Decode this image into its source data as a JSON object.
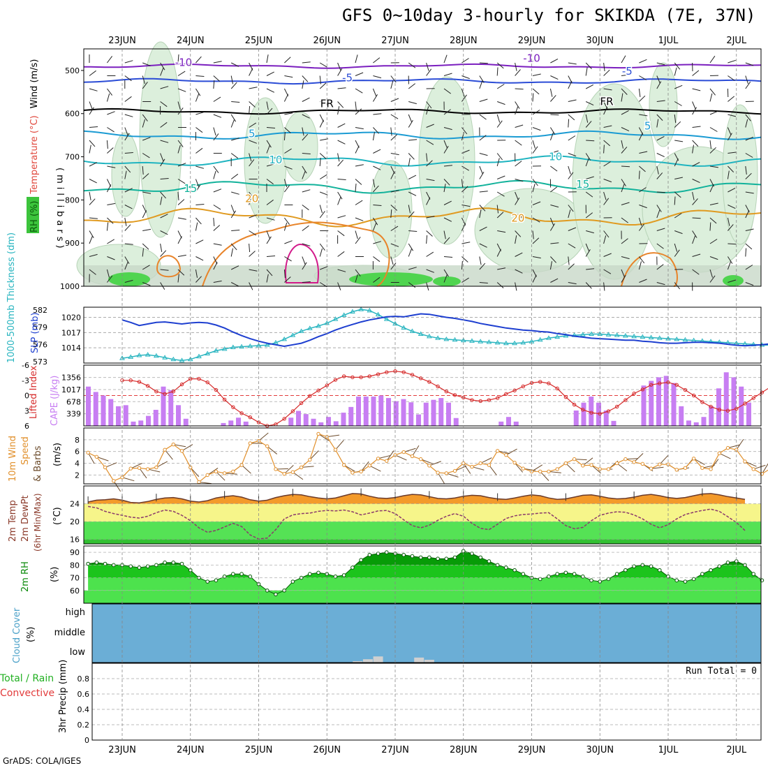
{
  "title": "GFS 0~10day 3-hourly for SKIKDA (7E, 37N)",
  "footer": "GrADS: COLA/IGES",
  "run_total_label": "Run Total = 0",
  "colors": {
    "temp_fill": "#f39a2b",
    "temp_band": "#f6f58a",
    "dew_band": "#55e255",
    "rh_dark": "#079b07",
    "rh_mid": "#1cc41c",
    "rh_light": "#4de24d",
    "cloud": "#6baed6",
    "cape_bar": "#c77ef2",
    "li_line": "#d62a2a",
    "slp_line": "#1e3fd0",
    "thk_line": "#29b5c0",
    "wind_line": "#e1902c"
  },
  "chart_data": {
    "type": "meteogram",
    "dates": [
      "23JUN",
      "24JUN",
      "25JUN",
      "26JUN",
      "27JUN",
      "28JUN",
      "29JUN",
      "30JUN",
      "1JUL",
      "2JUL"
    ],
    "upper_air": {
      "y_label_parts": [
        "RH (%)",
        "Temperature (°C)",
        "Wind (m/s)"
      ],
      "y_label_mb": "(millibars)",
      "y_ticks": [
        "500",
        "600",
        "700",
        "800",
        "900",
        "1000"
      ],
      "contour_labels": [
        {
          "text": "-10",
          "day": 0.9,
          "mb": 490,
          "color": "#7b1fbf"
        },
        {
          "text": "-10",
          "day": 6.0,
          "mb": 480,
          "color": "#7b1fbf"
        },
        {
          "text": "-5",
          "day": 3.3,
          "mb": 525,
          "color": "#2b4cd6"
        },
        {
          "text": "-5",
          "day": 7.4,
          "mb": 510,
          "color": "#2b4cd6"
        },
        {
          "text": "FR",
          "day": 3.0,
          "mb": 585,
          "color": "#000000"
        },
        {
          "text": "FR",
          "day": 7.1,
          "mb": 580,
          "color": "#000000"
        },
        {
          "text": "5",
          "day": 1.9,
          "mb": 655,
          "color": "#1b9bd3"
        },
        {
          "text": "5",
          "day": 7.7,
          "mb": 637,
          "color": "#1b9bd3"
        },
        {
          "text": "10",
          "day": 2.25,
          "mb": 715,
          "color": "#1fb4c0"
        },
        {
          "text": "10",
          "day": 6.35,
          "mb": 708,
          "color": "#1fb4c0"
        },
        {
          "text": "15",
          "day": 1.0,
          "mb": 782,
          "color": "#12b29b"
        },
        {
          "text": "15",
          "day": 6.75,
          "mb": 772,
          "color": "#12b29b"
        },
        {
          "text": "20",
          "day": 1.9,
          "mb": 805,
          "color": "#e09a20"
        },
        {
          "text": "20",
          "day": 5.8,
          "mb": 850,
          "color": "#e09a20"
        }
      ]
    },
    "slp_thickness": {
      "y_label_thickness": "1000-500mb Thickness (dm)",
      "y_label_slp": "SLP (mb)",
      "thickness_ticks": [
        "573",
        "576",
        "579",
        "582"
      ],
      "slp_ticks": [
        "1014",
        "1017",
        "1020"
      ],
      "slp": [
        1019.5,
        1019.0,
        1018.4,
        1018.7,
        1019.0,
        1019.1,
        1018.9,
        1018.7,
        1018.9,
        1019.0,
        1018.9,
        1018.5,
        1017.9,
        1017.1,
        1016.4,
        1015.8,
        1015.3,
        1014.9,
        1014.6,
        1014.3,
        1014.6,
        1014.9,
        1015.5,
        1016.2,
        1016.8,
        1017.5,
        1018.1,
        1018.6,
        1019.1,
        1019.5,
        1019.8,
        1020.1,
        1020.2,
        1020.1,
        1020.4,
        1020.7,
        1020.6,
        1020.3,
        1020.0,
        1019.8,
        1019.5,
        1019.2,
        1018.8,
        1018.5,
        1018.2,
        1017.9,
        1017.7,
        1017.5,
        1017.4,
        1017.2,
        1017.1,
        1016.8,
        1016.6,
        1016.3,
        1016.1,
        1015.9,
        1015.8,
        1015.7,
        1015.6,
        1015.5,
        1015.5,
        1015.3,
        1015.2,
        1015.0,
        1014.9,
        1014.9,
        1015.0,
        1015.1,
        1015.1,
        1015.0,
        1014.9,
        1014.7,
        1014.5,
        1014.4,
        1014.5,
        1014.6,
        1014.8,
        1014.9
      ],
      "thickness": [
        573.6,
        573.8,
        574.1,
        574.2,
        574.0,
        573.7,
        573.4,
        573.2,
        573.4,
        573.9,
        574.4,
        574.9,
        575.2,
        575.5,
        575.6,
        575.7,
        575.8,
        575.9,
        576.3,
        576.9,
        577.6,
        578.3,
        578.8,
        579.2,
        579.7,
        580.4,
        581.1,
        581.7,
        582.1,
        581.9,
        581.2,
        580.4,
        579.6,
        578.9,
        578.3,
        577.8,
        577.4,
        577.1,
        576.9,
        576.8,
        576.7,
        576.6,
        576.5,
        576.4,
        576.3,
        576.2,
        576.2,
        576.3,
        576.5,
        576.8,
        577.1,
        577.3,
        577.5,
        577.6,
        577.7,
        577.8,
        577.8,
        577.7,
        577.6,
        577.5,
        577.4,
        577.3,
        577.2,
        577.1,
        577.0,
        576.9,
        576.8,
        576.7,
        576.6,
        576.5,
        576.4,
        576.3,
        576.2,
        576.1,
        576.0,
        575.9,
        575.9,
        575.8
      ]
    },
    "cape_li": {
      "y_label_li": "Lifted Index",
      "y_label_cape": "CAPE (J/kg)",
      "li_ticks": [
        "-6",
        "-3",
        "0",
        "3",
        "6"
      ],
      "cape_ticks": [
        "339",
        "678",
        "1017",
        "1356"
      ],
      "cape": [
        1100,
        950,
        850,
        750,
        550,
        580,
        120,
        150,
        280,
        450,
        1100,
        1000,
        580,
        200,
        0,
        0,
        0,
        0,
        80,
        150,
        230,
        120,
        0,
        0,
        0,
        0,
        0,
        230,
        420,
        330,
        200,
        100,
        250,
        130,
        370,
        530,
        820,
        820,
        820,
        850,
        780,
        690,
        750,
        660,
        320,
        650,
        730,
        780,
        650,
        220,
        0,
        0,
        0,
        0,
        0,
        120,
        250,
        120,
        0,
        0,
        0,
        0,
        0,
        0,
        0,
        430,
        650,
        820,
        650,
        430,
        140,
        0,
        0,
        0,
        1130,
        1260,
        1360,
        1400,
        1200,
        550,
        150,
        100,
        250,
        550,
        1050,
        1500,
        1360,
        1100,
        650,
        0
      ],
      "li": [
        -3.0,
        -3.0,
        -2.7,
        -1.9,
        -0.8,
        -0.3,
        -0.8,
        -2.2,
        -3.3,
        -3.3,
        -2.6,
        -1.1,
        0.8,
        2.3,
        3.5,
        4.3,
        5.3,
        6.0,
        5.7,
        4.6,
        3.1,
        1.5,
        0.1,
        -1.0,
        -2.0,
        -3.1,
        -3.8,
        -3.6,
        -3.6,
        -3.8,
        -4.2,
        -4.6,
        -4.8,
        -4.6,
        -4.1,
        -3.4,
        -2.7,
        -1.8,
        -0.8,
        -0.1,
        0.4,
        0.9,
        1.1,
        0.9,
        0.5,
        -0.3,
        -1.0,
        -1.8,
        -2.5,
        -2.7,
        -2.4,
        -1.4,
        0.3,
        1.8,
        2.8,
        3.4,
        3.6,
        3.1,
        2.2,
        0.9,
        -0.4,
        -1.2,
        -2.1,
        -2.4,
        -2.6,
        -2.1,
        -1.1,
        0.0,
        1.3,
        2.2,
        2.8,
        3.0,
        2.6,
        1.6,
        0.5,
        -0.6,
        -1.7,
        -2.5,
        -3.1,
        -3.2
      ]
    },
    "wind10m": {
      "y_label_parts": [
        "10m Wind",
        "Speed",
        "& Barbs"
      ],
      "y_units": "(m/s)",
      "y_ticks": [
        "2",
        "4",
        "6",
        "8"
      ],
      "speed": [
        5.8,
        5.1,
        3.3,
        1.0,
        1.6,
        3.1,
        3.2,
        3.0,
        3.3,
        6.3,
        7.2,
        6.1,
        3.3,
        0.8,
        2.0,
        2.6,
        2.3,
        2.6,
        3.7,
        7.4,
        7.8,
        6.9,
        3.0,
        2.2,
        2.5,
        3.3,
        4.6,
        9.0,
        8.5,
        6.3,
        3.7,
        2.4,
        2.6,
        3.6,
        4.8,
        4.4,
        5.4,
        5.9,
        5.2,
        4.7,
        3.6,
        2.4,
        2.3,
        2.7,
        4.0,
        3.4,
        4.0,
        3.7,
        6.1,
        5.4,
        4.1,
        3.1,
        2.6,
        2.6,
        2.6,
        3.0,
        4.0,
        4.7,
        3.6,
        3.7,
        3.0,
        3.0,
        4.0,
        4.7,
        4.2,
        3.9,
        3.1,
        3.8,
        3.8,
        2.9,
        3.2,
        4.8,
        3.2,
        3.0,
        5.7,
        6.6,
        6.3,
        4.3,
        3.0,
        2.2,
        3.1,
        4.5,
        4.1,
        5.0,
        3.9,
        2.6,
        2.4,
        2.5,
        2.6,
        2.7
      ]
    },
    "temp2m": {
      "y_label_parts": [
        "2m Temp",
        "2m DewPt",
        "(6hr Min/Max)"
      ],
      "y_units": "(°C)",
      "y_ticks": [
        "16",
        "20",
        "24"
      ],
      "temp": [
        24.4,
        24.8,
        24.9,
        25.1,
        24.8,
        24.3,
        24.2,
        24.5,
        25.0,
        25.3,
        25.4,
        25.1,
        24.6,
        24.4,
        24.7,
        25.3,
        25.6,
        25.8,
        25.5,
        24.9,
        24.6,
        24.8,
        25.4,
        25.8,
        26.1,
        26.0,
        25.6,
        25.3,
        25.1,
        25.3,
        25.8,
        26.3,
        26.2,
        25.7,
        25.3,
        25.2,
        25.4,
        25.8,
        26.1,
        26.0,
        25.6,
        25.2,
        25.1,
        25.3,
        25.7,
        25.9,
        25.8,
        25.4,
        25.1,
        25.0,
        25.3,
        25.7,
        26.0,
        25.8,
        25.3,
        25.0,
        25.1,
        25.5,
        25.9,
        26.0,
        25.7,
        25.3,
        25.1,
        25.2,
        25.5,
        25.9,
        26.1,
        25.8,
        25.4,
        25.2,
        25.4,
        25.8,
        26.2,
        26.3,
        26.0,
        25.6,
        25.3,
        25.0
      ],
      "dewpt": [
        23.4,
        23.1,
        22.3,
        21.8,
        21.4,
        21.0,
        20.8,
        21.2,
        22.0,
        22.6,
        22.3,
        21.4,
        20.2,
        18.6,
        17.6,
        18.0,
        18.8,
        19.6,
        18.9,
        17.0,
        16.1,
        16.3,
        18.2,
        20.6,
        21.5,
        21.8,
        21.9,
        22.3,
        22.5,
        22.4,
        22.6,
        22.2,
        21.5,
        21.9,
        22.4,
        22.5,
        21.8,
        20.4,
        19.1,
        18.6,
        19.2,
        20.3,
        21.2,
        21.8,
        21.2,
        19.6,
        18.5,
        18.2,
        19.4,
        20.7,
        21.3,
        21.6,
        21.7,
        21.9,
        22.0,
        20.6,
        19.1,
        18.4,
        18.7,
        20.2,
        21.4,
        21.9,
        22.2,
        22.1,
        21.5,
        20.6,
        19.4,
        18.6,
        19.3,
        20.6,
        21.6,
        22.1,
        22.5,
        22.8,
        22.3,
        21.1,
        19.8,
        18.0
      ]
    },
    "rh2m": {
      "y_label": "2m RH",
      "y_units": "(%)",
      "y_ticks": [
        "60",
        "70",
        "80",
        "90"
      ],
      "rh": [
        81,
        82,
        81,
        80,
        80,
        79,
        78,
        79,
        80,
        82,
        82,
        81,
        76,
        70,
        67,
        68,
        71,
        73,
        73,
        71,
        65,
        60,
        57,
        60,
        67,
        70,
        73,
        74,
        73,
        71,
        72,
        78,
        84,
        88,
        89,
        90,
        89,
        88,
        87,
        86,
        86,
        85,
        85,
        86,
        91,
        89,
        86,
        83,
        80,
        78,
        76,
        73,
        70,
        69,
        71,
        73,
        74,
        73,
        71,
        68,
        67,
        69,
        73,
        76,
        79,
        80,
        79,
        76,
        71,
        68,
        67,
        69,
        73,
        76,
        79,
        82,
        83,
        80,
        73,
        68
      ]
    },
    "cloud": {
      "y_label_parts": [
        "Cloud Cover",
        "(%)"
      ],
      "y_ticks": [
        "low",
        "middle",
        "high"
      ],
      "low_steps": [
        {
          "day": 3.45,
          "frac": 0.05
        },
        {
          "day": 3.6,
          "frac": 0.12
        },
        {
          "day": 3.75,
          "frac": 0.22
        },
        {
          "day": 4.35,
          "frac": 0.18
        },
        {
          "day": 4.5,
          "frac": 0.1
        }
      ]
    },
    "precip": {
      "y_label_parts": [
        "Total / Rain",
        "Convective",
        "3hr Precip (mm)"
      ],
      "y_ticks": [
        "0",
        "0.2",
        "0.4",
        "0.6",
        "0.8"
      ],
      "ylim": [
        0,
        1
      ],
      "values": []
    }
  }
}
